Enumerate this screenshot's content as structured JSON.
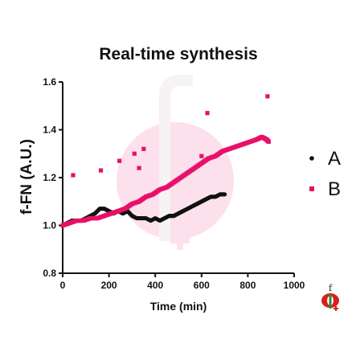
{
  "chart_data": {
    "type": "scatter",
    "title": "Real-time synthesis",
    "xlabel": "Time (min)",
    "ylabel": "f-FN (A.U.)",
    "xlim": [
      0,
      1000
    ],
    "ylim": [
      0.8,
      1.6
    ],
    "xticks": [
      "0",
      "200",
      "400",
      "600",
      "800",
      "1000"
    ],
    "yticks": [
      "0.8",
      "1.0",
      "1.2",
      "1.4",
      "1.6"
    ],
    "legend_position": "right",
    "series": [
      {
        "name": "A",
        "color": "#111111",
        "marker": "circle",
        "x": [
          0,
          20,
          40,
          60,
          80,
          100,
          120,
          140,
          160,
          180,
          200,
          220,
          240,
          260,
          280,
          300,
          320,
          340,
          360,
          380,
          400,
          420,
          440,
          460,
          480,
          500,
          520,
          540,
          560,
          580,
          600,
          620,
          640,
          660,
          680,
          700
        ],
        "y": [
          1.0,
          1.01,
          1.02,
          1.02,
          1.02,
          1.03,
          1.04,
          1.05,
          1.07,
          1.07,
          1.06,
          1.05,
          1.06,
          1.05,
          1.06,
          1.04,
          1.03,
          1.03,
          1.03,
          1.02,
          1.03,
          1.02,
          1.03,
          1.04,
          1.04,
          1.05,
          1.06,
          1.07,
          1.08,
          1.09,
          1.1,
          1.11,
          1.12,
          1.12,
          1.13,
          1.13
        ]
      },
      {
        "name": "B",
        "color": "#e8106a",
        "marker": "square",
        "x": [
          0,
          30,
          60,
          90,
          120,
          150,
          180,
          210,
          240,
          270,
          300,
          330,
          360,
          390,
          420,
          450,
          480,
          510,
          540,
          570,
          600,
          630,
          660,
          690,
          720,
          750,
          780,
          810,
          840,
          860,
          880,
          890
        ],
        "y": [
          1.0,
          1.01,
          1.02,
          1.02,
          1.03,
          1.03,
          1.04,
          1.05,
          1.06,
          1.07,
          1.09,
          1.1,
          1.12,
          1.13,
          1.15,
          1.16,
          1.18,
          1.2,
          1.22,
          1.24,
          1.26,
          1.28,
          1.29,
          1.31,
          1.32,
          1.33,
          1.34,
          1.35,
          1.36,
          1.37,
          1.36,
          1.35
        ]
      },
      {
        "name": "B",
        "color": "#e8106a",
        "marker": "square",
        "outliers": true,
        "x": [
          45,
          165,
          245,
          310,
          330,
          350,
          600,
          625,
          885
        ],
        "y": [
          1.21,
          1.23,
          1.27,
          1.3,
          1.24,
          1.32,
          1.29,
          1.47,
          1.54
        ]
      }
    ]
  },
  "legend": {
    "items": [
      {
        "label": "A",
        "color": "#111111",
        "marker": "circle"
      },
      {
        "label": "B",
        "color": "#e8106a",
        "marker": "square"
      }
    ]
  },
  "logo": {
    "name": "f-letter-logo",
    "letter": "f"
  }
}
